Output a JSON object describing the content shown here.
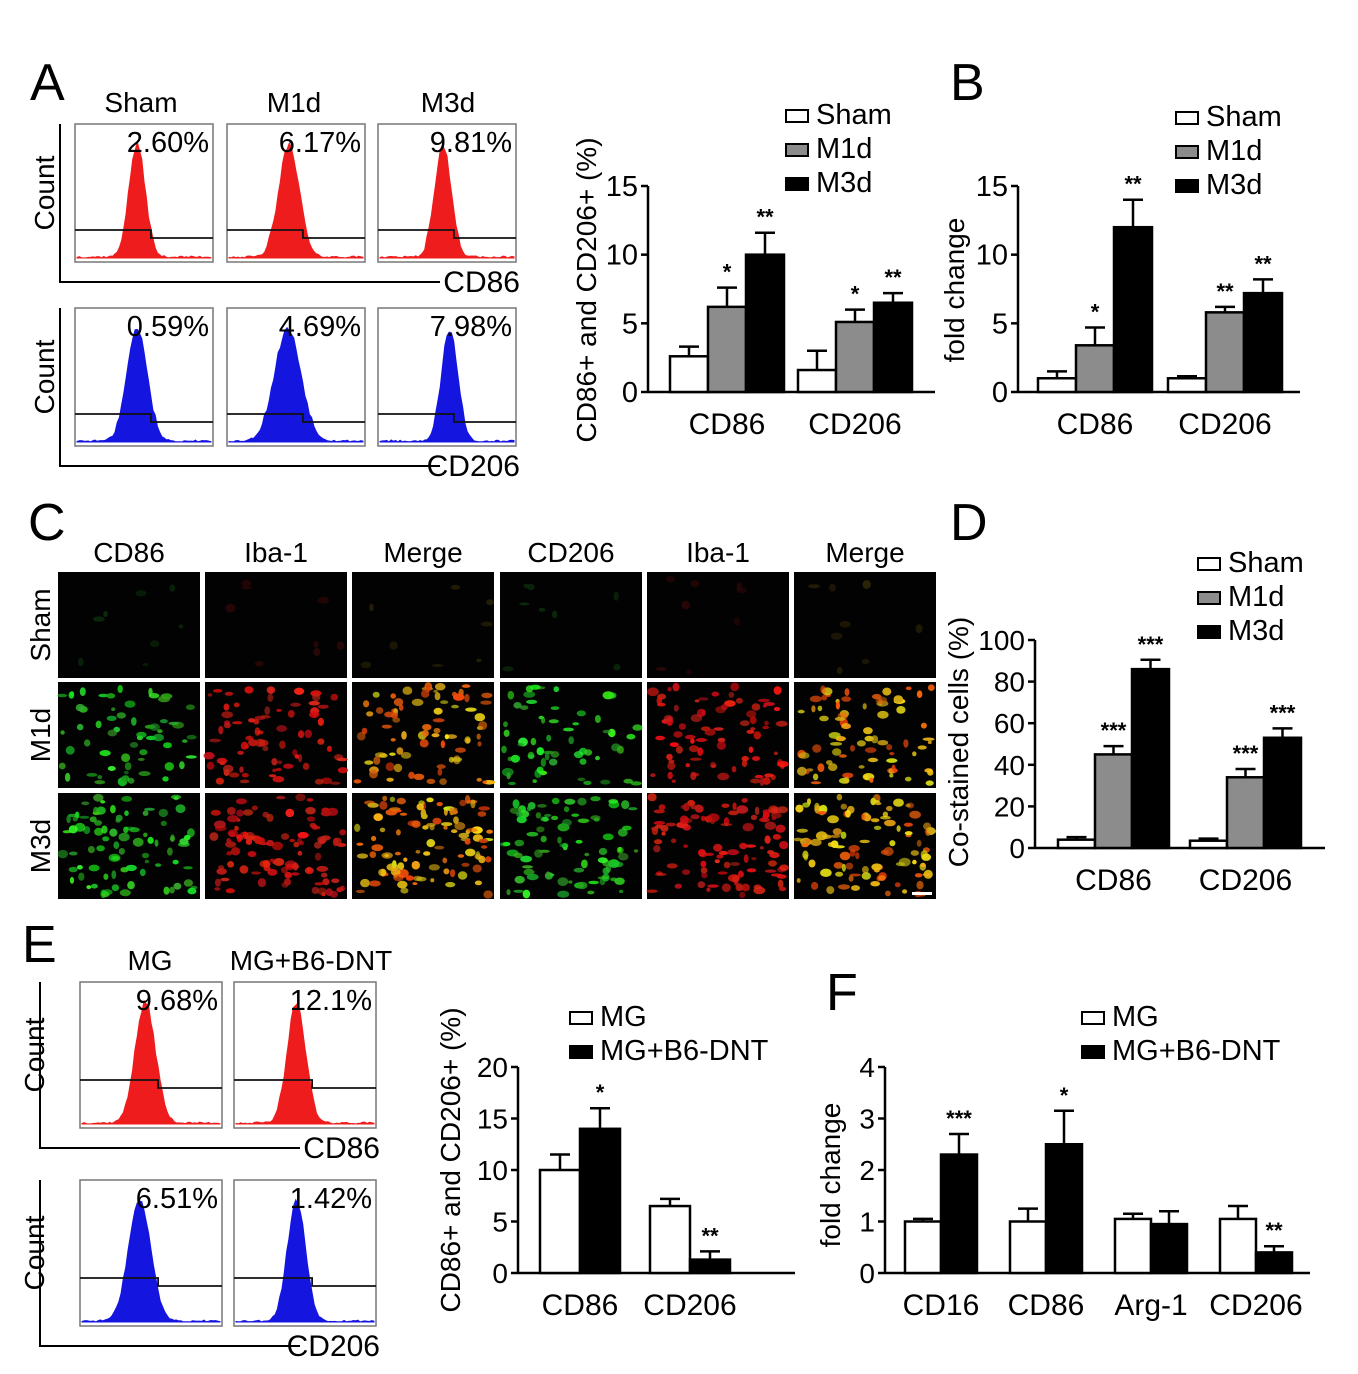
{
  "panels": {
    "A": {
      "letter": "A",
      "columns": [
        "Sham",
        "M1d",
        "M3d"
      ],
      "count_label": "Count",
      "rows": [
        {
          "marker": "CD86",
          "color": "#ee1c1c",
          "percents": [
            "2.60%",
            "6.17%",
            "9.81%"
          ]
        },
        {
          "marker": "CD206",
          "color": "#1515e0",
          "percents": [
            "0.59%",
            "4.69%",
            "7.98%"
          ]
        }
      ]
    },
    "C": {
      "letter": "C",
      "column_labels": [
        "CD86",
        "Iba-1",
        "Merge",
        "CD206",
        "Iba-1",
        "Merge"
      ],
      "row_labels": [
        "Sham",
        "M1d",
        "M3d"
      ]
    },
    "E": {
      "letter": "E",
      "columns": [
        "MG",
        "MG+B6-DNT"
      ],
      "count_label": "Count",
      "rows": [
        {
          "marker": "CD86",
          "color": "#ee1c1c",
          "percents": [
            "9.68%",
            "12.1%"
          ]
        },
        {
          "marker": "CD206",
          "color": "#1515e0",
          "percents": [
            "6.51%",
            "1.42%"
          ]
        }
      ]
    }
  },
  "colors": {
    "white_bar": "#ffffff",
    "gray_bar": "#8c8c8c",
    "black_bar": "#000000"
  },
  "chart_data": [
    {
      "id": "A-bar",
      "type": "bar",
      "ylabel": "CD86+ and CD206+ (%)",
      "categories": [
        "CD86",
        "CD206"
      ],
      "ylim": [
        0,
        15
      ],
      "yticks": [
        0,
        5,
        10,
        15
      ],
      "series": [
        {
          "name": "Sham",
          "values": [
            2.6,
            1.6
          ],
          "errors": [
            0.7,
            1.4
          ],
          "sig": [
            "",
            ""
          ]
        },
        {
          "name": "M1d",
          "values": [
            6.2,
            5.1
          ],
          "errors": [
            1.4,
            0.9
          ],
          "sig": [
            "*",
            "*"
          ]
        },
        {
          "name": "M3d",
          "values": [
            10.0,
            6.5
          ],
          "errors": [
            1.6,
            0.7
          ],
          "sig": [
            "**",
            "**"
          ]
        }
      ]
    },
    {
      "id": "B",
      "letter": "B",
      "type": "bar",
      "ylabel": "fold change",
      "categories": [
        "CD86",
        "CD206"
      ],
      "ylim": [
        0,
        15
      ],
      "yticks": [
        0,
        5,
        10,
        15
      ],
      "series": [
        {
          "name": "Sham",
          "values": [
            1.0,
            1.0
          ],
          "errors": [
            0.5,
            0.15
          ],
          "sig": [
            "",
            ""
          ]
        },
        {
          "name": "M1d",
          "values": [
            3.4,
            5.8
          ],
          "errors": [
            1.3,
            0.4
          ],
          "sig": [
            "*",
            "**"
          ]
        },
        {
          "name": "M3d",
          "values": [
            12.0,
            7.2
          ],
          "errors": [
            2.0,
            1.0
          ],
          "sig": [
            "**",
            "**"
          ]
        }
      ]
    },
    {
      "id": "D",
      "letter": "D",
      "type": "bar",
      "ylabel": "Co-stained cells (%)",
      "categories": [
        "CD86",
        "CD206"
      ],
      "ylim": [
        0,
        100
      ],
      "yticks": [
        0,
        20,
        40,
        60,
        80,
        100
      ],
      "series": [
        {
          "name": "Sham",
          "values": [
            4,
            3.5
          ],
          "errors": [
            1.2,
            1.0
          ],
          "sig": [
            "",
            ""
          ]
        },
        {
          "name": "M1d",
          "values": [
            45,
            34
          ],
          "errors": [
            4,
            4
          ],
          "sig": [
            "***",
            "***"
          ]
        },
        {
          "name": "M3d",
          "values": [
            86,
            53
          ],
          "errors": [
            4.5,
            4.5
          ],
          "sig": [
            "***",
            "***"
          ]
        }
      ]
    },
    {
      "id": "E-bar",
      "type": "bar",
      "ylabel": "CD86+ and CD206+ (%)",
      "categories": [
        "CD86",
        "CD206"
      ],
      "ylim": [
        0,
        20
      ],
      "yticks": [
        0,
        5,
        10,
        15,
        20
      ],
      "series": [
        {
          "name": "MG",
          "values": [
            10,
            6.5
          ],
          "errors": [
            1.5,
            0.7
          ],
          "sig": [
            "",
            ""
          ]
        },
        {
          "name": "MG+B6-DNT",
          "values": [
            14,
            1.3
          ],
          "errors": [
            2.0,
            0.8
          ],
          "sig": [
            "*",
            "**"
          ]
        }
      ]
    },
    {
      "id": "F",
      "letter": "F",
      "type": "bar",
      "ylabel": "fold change",
      "categories": [
        "CD16",
        "CD86",
        "Arg-1",
        "CD206"
      ],
      "ylim": [
        0,
        4
      ],
      "yticks": [
        0,
        1,
        2,
        3,
        4
      ],
      "series": [
        {
          "name": "MG",
          "values": [
            1.0,
            1.0,
            1.05,
            1.05
          ],
          "errors": [
            0.05,
            0.25,
            0.1,
            0.25
          ],
          "sig": [
            "",
            "",
            "",
            ""
          ]
        },
        {
          "name": "MG+B6-DNT",
          "values": [
            2.3,
            2.5,
            0.95,
            0.4
          ],
          "errors": [
            0.4,
            0.65,
            0.25,
            0.12
          ],
          "sig": [
            "***",
            "*",
            "",
            "**"
          ]
        }
      ]
    }
  ]
}
